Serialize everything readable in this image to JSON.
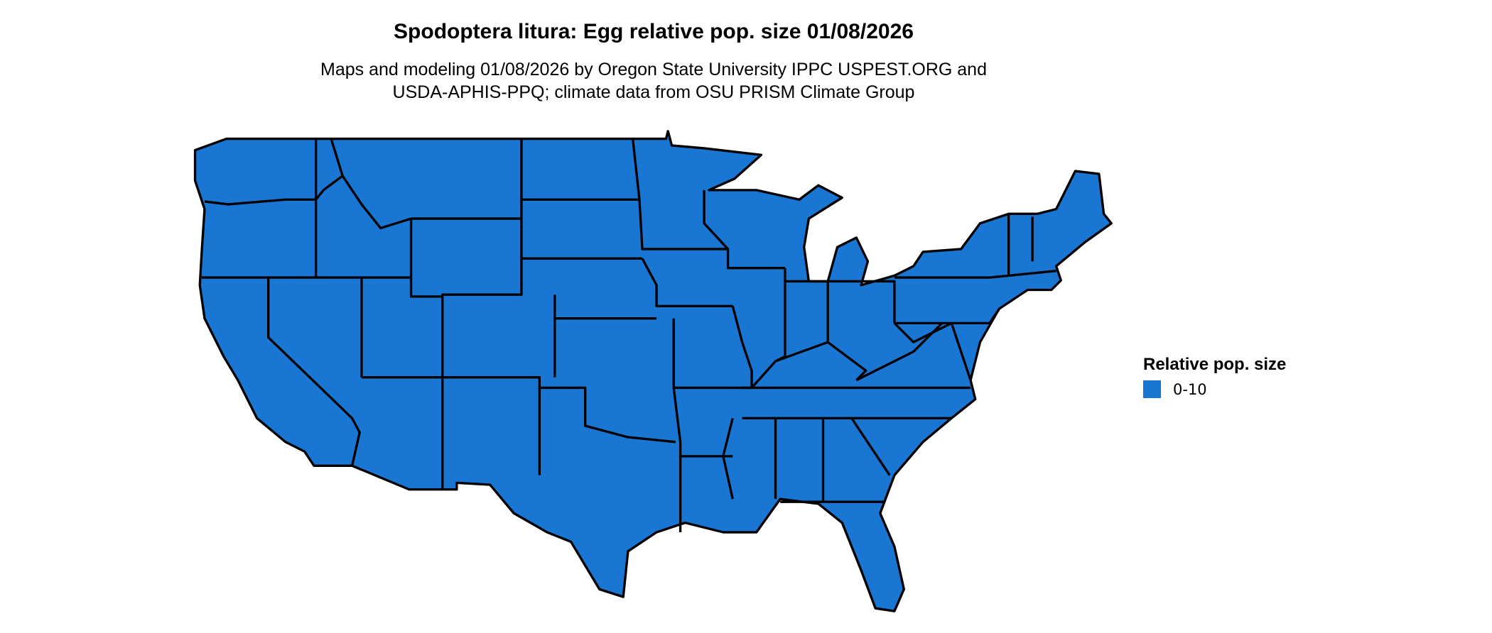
{
  "title": "Spodoptera litura: Egg relative pop. size 01/08/2026",
  "subtitle_lines": [
    "Maps and modeling 01/08/2026 by Oregon State University IPPC USPEST.ORG and",
    "USDA-APHIS-PPQ; climate data from OSU PRISM Climate Group"
  ],
  "map": {
    "region": "Contiguous United States",
    "boundaries": "states",
    "fill_color": "#1976D2",
    "border_color": "#000000"
  },
  "legend": {
    "title": "Relative pop. size",
    "items": [
      {
        "label": "0-10",
        "color": "#1976D2"
      }
    ]
  }
}
